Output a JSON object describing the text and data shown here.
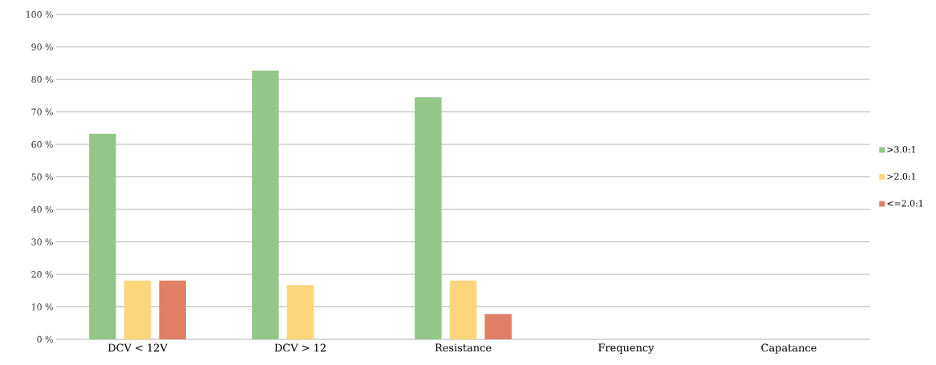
{
  "chart_data": {
    "type": "bar",
    "categories": [
      "DCV < 12V",
      "DCV > 12",
      "Resistance",
      "Frequency",
      "Capatance"
    ],
    "series": [
      {
        "name": ">3.0:1",
        "color": "#93c788",
        "values": [
          63.3,
          82.7,
          74.5,
          null,
          null
        ]
      },
      {
        "name": ">2.0:1",
        "color": "#fdd67b",
        "values": [
          18.1,
          16.7,
          18.1,
          null,
          null
        ]
      },
      {
        "name": "<=2.0:1",
        "color": "#e07f66",
        "values": [
          18.1,
          null,
          7.8,
          null,
          null
        ]
      }
    ],
    "ylim": [
      0,
      100
    ],
    "yticks": [
      {
        "value": 0,
        "label": "0 %"
      },
      {
        "value": 10,
        "label": "10 %"
      },
      {
        "value": 20,
        "label": "20 %"
      },
      {
        "value": 30,
        "label": "30 %"
      },
      {
        "value": 40,
        "label": "40 %"
      },
      {
        "value": 50,
        "label": "50 %"
      },
      {
        "value": 60,
        "label": "60 %"
      },
      {
        "value": 70,
        "label": "70 %"
      },
      {
        "value": 80,
        "label": "80 %"
      },
      {
        "value": 90,
        "label": "90 %"
      },
      {
        "value": 100,
        "label": "100 %"
      }
    ],
    "grid": "y",
    "legend": "right"
  }
}
